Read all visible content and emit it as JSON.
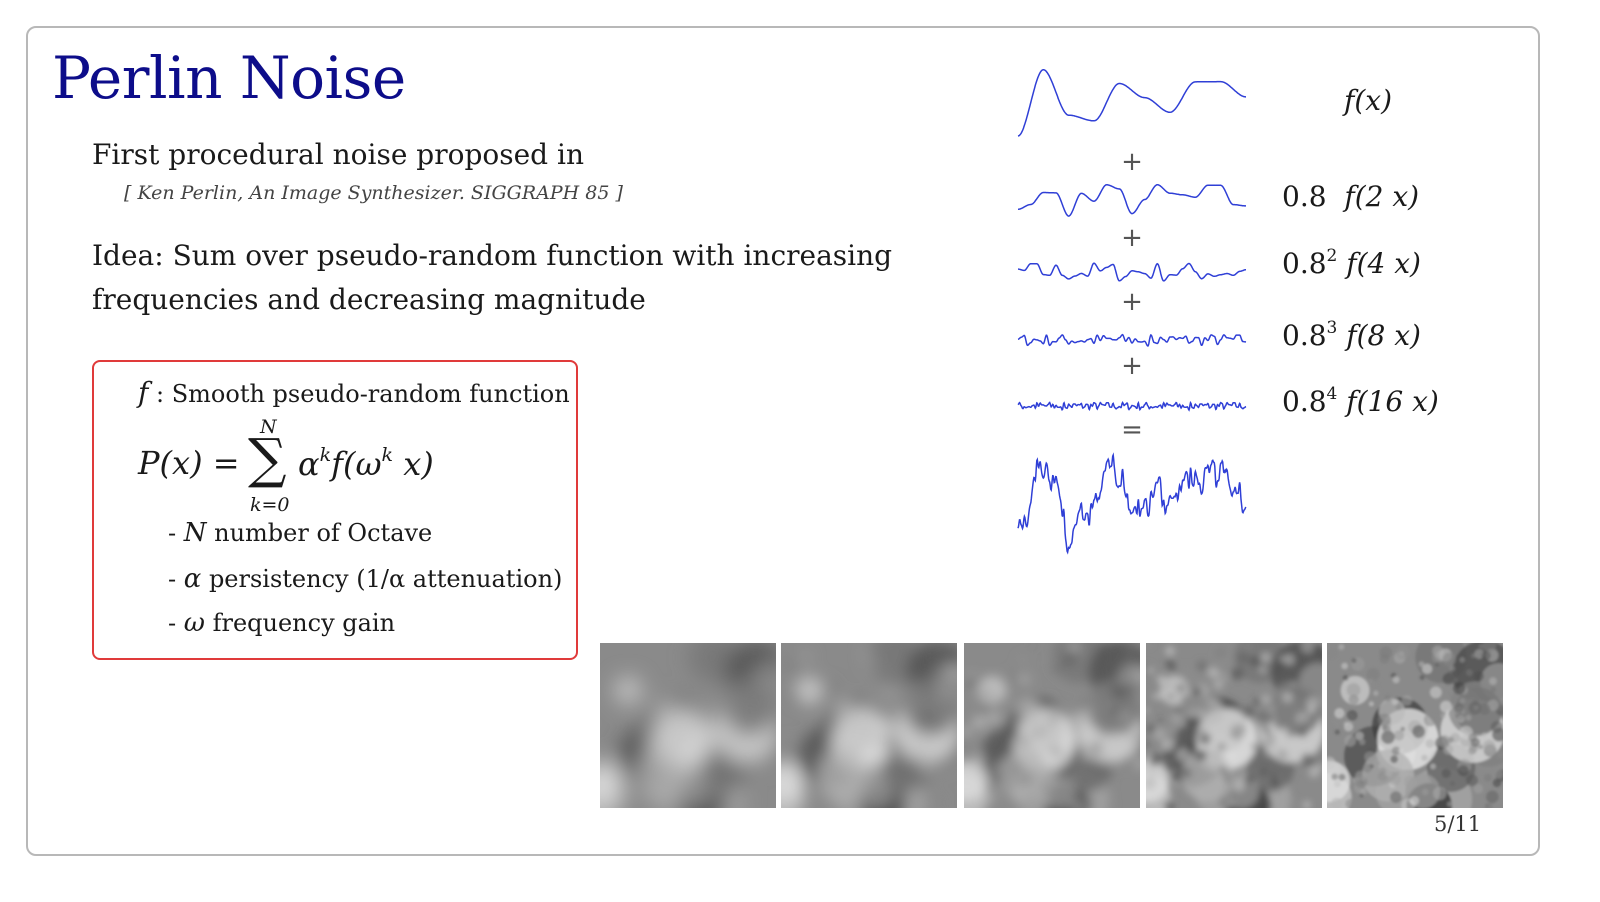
{
  "title": "Perlin Noise",
  "intro": "First procedural noise proposed in",
  "citation": "[ Ken Perlin, An Image Synthesizer. SIGGRAPH 85 ]",
  "idea": "Idea: Sum over pseudo-random function with increasing frequencies and decreasing magnitude",
  "definition": {
    "f_symbol": "f",
    "f_text": " : Smooth pseudo-random function",
    "formula_lhs": "P(x) =",
    "formula_sum_symbol": "∑",
    "formula_upper": "N",
    "formula_lower": "k=0",
    "formula_alpha": "α",
    "formula_k": "k",
    "formula_f": "f(ω",
    "formula_k2": "k",
    "formula_end": " x)",
    "bullets": [
      {
        "prefix": "- ",
        "symbol": "N",
        "text": " number of Octave"
      },
      {
        "prefix": "- ",
        "symbol": "α",
        "text": " persistency (1/α attenuation)"
      },
      {
        "prefix": "- ",
        "symbol": "ω",
        "text": " frequency gain"
      }
    ]
  },
  "waves": {
    "color": "#2f3fd6",
    "operators": [
      "+",
      "+",
      "+",
      "+",
      "="
    ],
    "labels": [
      {
        "coef": "",
        "exp": "",
        "term": "f(x)"
      },
      {
        "coef": "0.8",
        "exp": "",
        "term": "f(2 x)"
      },
      {
        "coef": "0.8",
        "exp": "2",
        "term": "f(4 x)"
      },
      {
        "coef": "0.8",
        "exp": "3",
        "term": "f(8 x)"
      },
      {
        "coef": "0.8",
        "exp": "4",
        "term": "f(16 x)"
      }
    ]
  },
  "page_number": "5/11"
}
